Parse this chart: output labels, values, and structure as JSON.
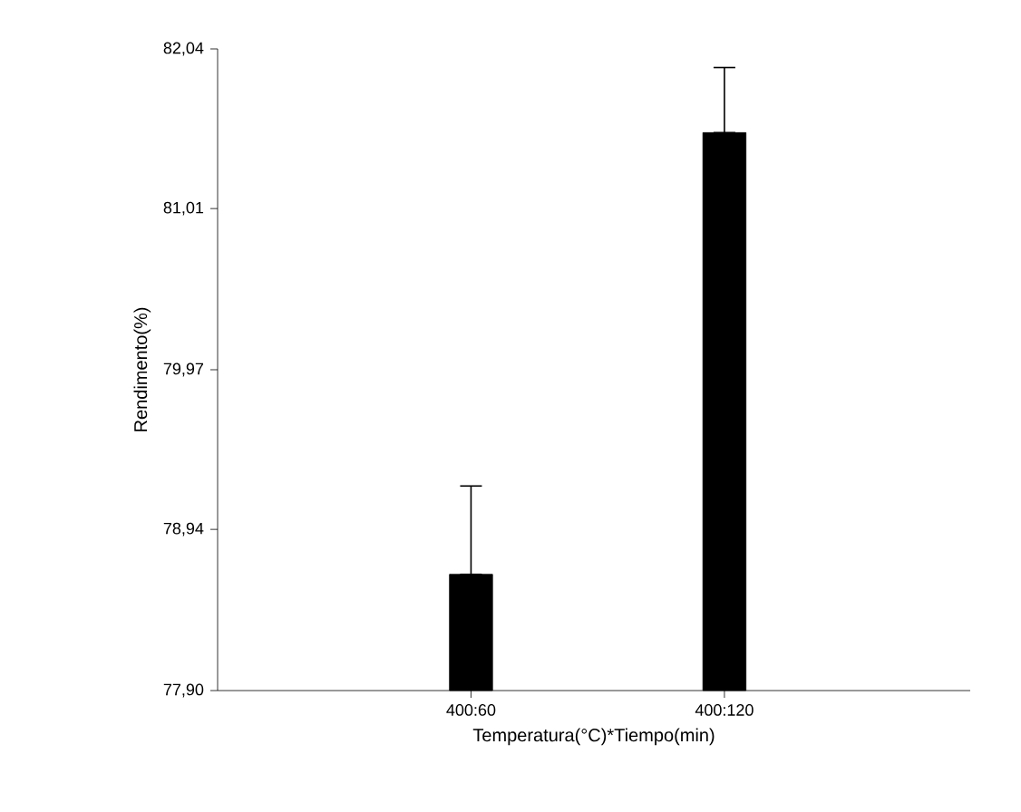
{
  "chart_data": {
    "type": "bar",
    "xlabel": "Temperatura(°C)*Tiempo(min)",
    "ylabel": "Rendimento(%)",
    "categories": [
      "400:60",
      "400:120"
    ],
    "values": [
      78.65,
      81.5
    ],
    "errors": [
      [
        78.65,
        79.22
      ],
      [
        81.5,
        81.92
      ]
    ],
    "color": "#000000",
    "ylim": [
      77.9,
      82.04
    ],
    "yticks": [
      {
        "value": 77.9,
        "label": "77,90"
      },
      {
        "value": 78.94,
        "label": "78,94"
      },
      {
        "value": 79.97,
        "label": "79,97"
      },
      {
        "value": 81.01,
        "label": "81,01"
      },
      {
        "value": 82.04,
        "label": "82,04"
      }
    ],
    "grid": false
  }
}
